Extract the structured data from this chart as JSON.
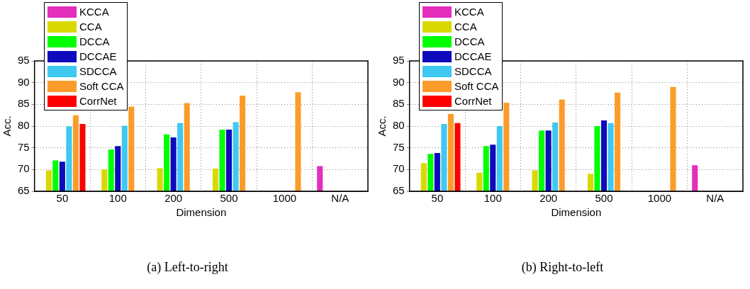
{
  "chart_data": [
    {
      "type": "bar",
      "xlabel": "Dimension",
      "ylabel": "Acc.",
      "annotations": [
        "(a) Left-to-right"
      ],
      "categories": [
        "50",
        "100",
        "200",
        "500",
        "1000",
        "N/A"
      ],
      "ylim": [
        65,
        95
      ],
      "yticks": [
        65,
        70,
        75,
        80,
        85,
        90,
        95
      ],
      "grid": true,
      "legend": "top left",
      "series": [
        {
          "name": "KCCA",
          "color": "#e42ebc",
          "values": [
            null,
            null,
            null,
            null,
            null,
            70.8
          ]
        },
        {
          "name": "CCA",
          "color": "#d9d900",
          "values": [
            69.8,
            70.0,
            70.3,
            70.2,
            null,
            null
          ]
        },
        {
          "name": "DCCA",
          "color": "#00ff00",
          "values": [
            72.1,
            74.6,
            78.1,
            79.2,
            null,
            null
          ]
        },
        {
          "name": "DCCAE",
          "color": "#0f0bbd",
          "values": [
            71.8,
            75.4,
            77.4,
            79.2,
            null,
            null
          ]
        },
        {
          "name": "SDCCA",
          "color": "#3ec8f2",
          "values": [
            79.9,
            80.1,
            80.7,
            80.9,
            null,
            null
          ]
        },
        {
          "name": "Soft CCA",
          "color": "#fb9c2a",
          "values": [
            82.5,
            84.5,
            85.3,
            87.0,
            87.8,
            null
          ]
        },
        {
          "name": "CorrNet",
          "color": "#ff0000",
          "values": [
            80.5,
            null,
            null,
            null,
            null,
            null
          ]
        }
      ]
    },
    {
      "type": "bar",
      "xlabel": "Dimension",
      "ylabel": "Acc.",
      "annotations": [
        "(b) Right-to-left"
      ],
      "categories": [
        "50",
        "100",
        "200",
        "500",
        "1000",
        "N/A"
      ],
      "ylim": [
        65,
        95
      ],
      "yticks": [
        65,
        70,
        75,
        80,
        85,
        90,
        95
      ],
      "grid": true,
      "legend": "top left",
      "series": [
        {
          "name": "KCCA",
          "color": "#e42ebc",
          "values": [
            null,
            null,
            null,
            null,
            null,
            71.0
          ]
        },
        {
          "name": "CCA",
          "color": "#d9d900",
          "values": [
            71.5,
            69.3,
            69.8,
            69.0,
            null,
            null
          ]
        },
        {
          "name": "DCCA",
          "color": "#00ff00",
          "values": [
            73.6,
            75.4,
            79.0,
            80.0,
            null,
            null
          ]
        },
        {
          "name": "DCCAE",
          "color": "#0f0bbd",
          "values": [
            73.8,
            75.7,
            79.0,
            81.3,
            null,
            null
          ]
        },
        {
          "name": "SDCCA",
          "color": "#3ec8f2",
          "values": [
            80.5,
            80.0,
            80.8,
            80.7,
            null,
            null
          ]
        },
        {
          "name": "Soft CCA",
          "color": "#fb9c2a",
          "values": [
            82.8,
            85.4,
            86.1,
            87.7,
            89.0,
            null
          ]
        },
        {
          "name": "CorrNet",
          "color": "#ff0000",
          "values": [
            80.7,
            null,
            null,
            null,
            null,
            null
          ]
        }
      ]
    }
  ]
}
